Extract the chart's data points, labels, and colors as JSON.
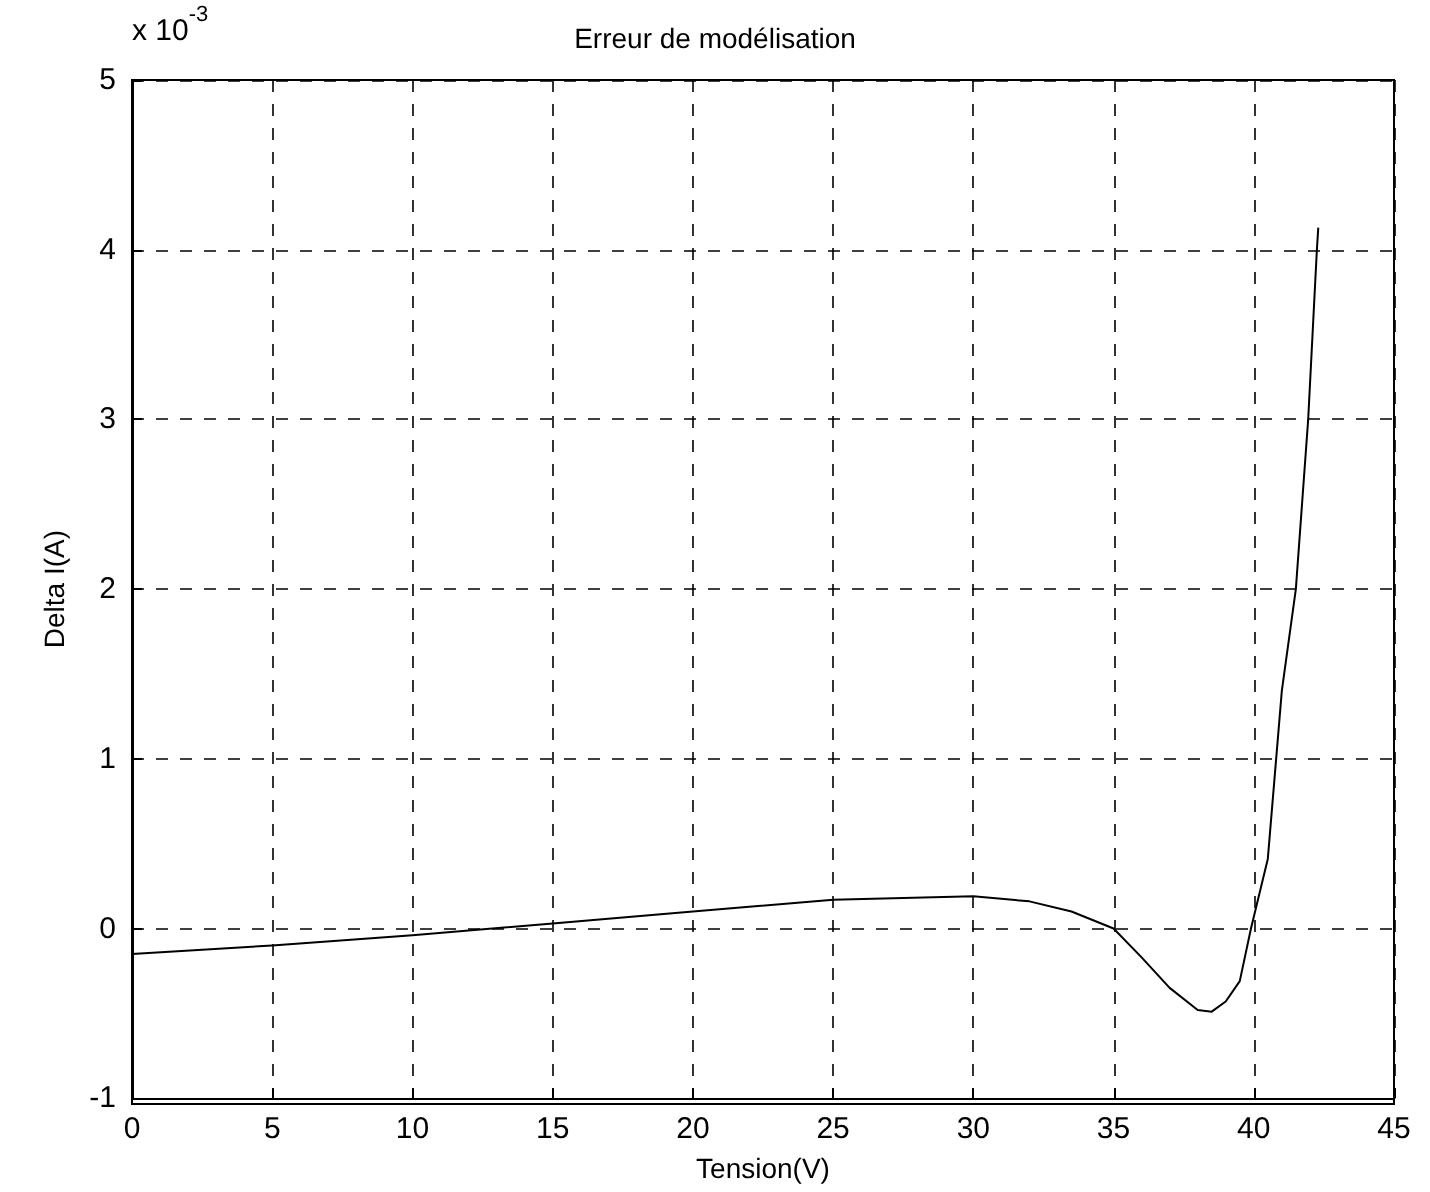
{
  "chart_data": {
    "type": "line",
    "title": "Erreur de modélisation",
    "xlabel": "Tension(V)",
    "ylabel": "Delta I(A)",
    "annotations": [
      "x 10$^{-3}$"
    ],
    "x": [
      0,
      5,
      10,
      15,
      20,
      25,
      30,
      32,
      33.5,
      35,
      36,
      37,
      38,
      38.5,
      39,
      39.5,
      39.9,
      40.5,
      41,
      41.5,
      41.94,
      42.25,
      42.3
    ],
    "series": [
      {
        "color": "#000000",
        "values": [
          -0.15,
          -0.1,
          -0.04,
          0.03,
          0.1,
          0.17,
          0.19,
          0.16,
          0.1,
          0.0,
          -0.17,
          -0.35,
          -0.48,
          -0.49,
          -0.43,
          -0.31,
          0,
          0.41,
          1.4,
          2,
          3,
          4,
          4.13
        ]
      }
    ],
    "xlim": [
      0,
      45
    ],
    "xticks": [
      0,
      5,
      10,
      15,
      20,
      25,
      30,
      35,
      40,
      45
    ],
    "ylim": [
      -1,
      5
    ],
    "yticks": [
      -1,
      0,
      1,
      2,
      3,
      4,
      5
    ],
    "grid": true,
    "marker": "none",
    "line_style": "solid"
  }
}
